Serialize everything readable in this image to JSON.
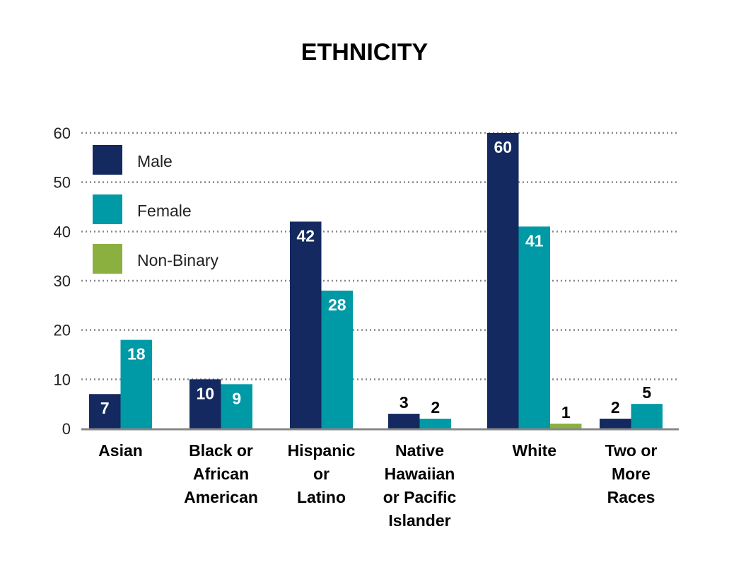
{
  "chart_data": {
    "type": "bar",
    "title": "ETHNICITY",
    "categories": [
      [
        "Asian"
      ],
      [
        "Black or",
        "African",
        "American"
      ],
      [
        "Hispanic",
        "or",
        "Latino"
      ],
      [
        "Native",
        "Hawaiian",
        "or Pacific",
        "Islander"
      ],
      [
        "White"
      ],
      [
        "Two or",
        "More",
        "Races"
      ]
    ],
    "series": [
      {
        "name": "Male",
        "color": "#13295f",
        "values": [
          7,
          10,
          42,
          3,
          60,
          2
        ]
      },
      {
        "name": "Female",
        "color": "#0099a6",
        "values": [
          18,
          9,
          28,
          2,
          41,
          5
        ]
      },
      {
        "name": "Non-Binary",
        "color": "#8cb03f",
        "values": [
          null,
          null,
          null,
          null,
          1,
          null
        ]
      }
    ],
    "ylim": [
      0,
      60
    ],
    "yticks": [
      0,
      10,
      20,
      30,
      40,
      50,
      60
    ],
    "grid": "dotted horizontal",
    "legend": "top-left"
  }
}
